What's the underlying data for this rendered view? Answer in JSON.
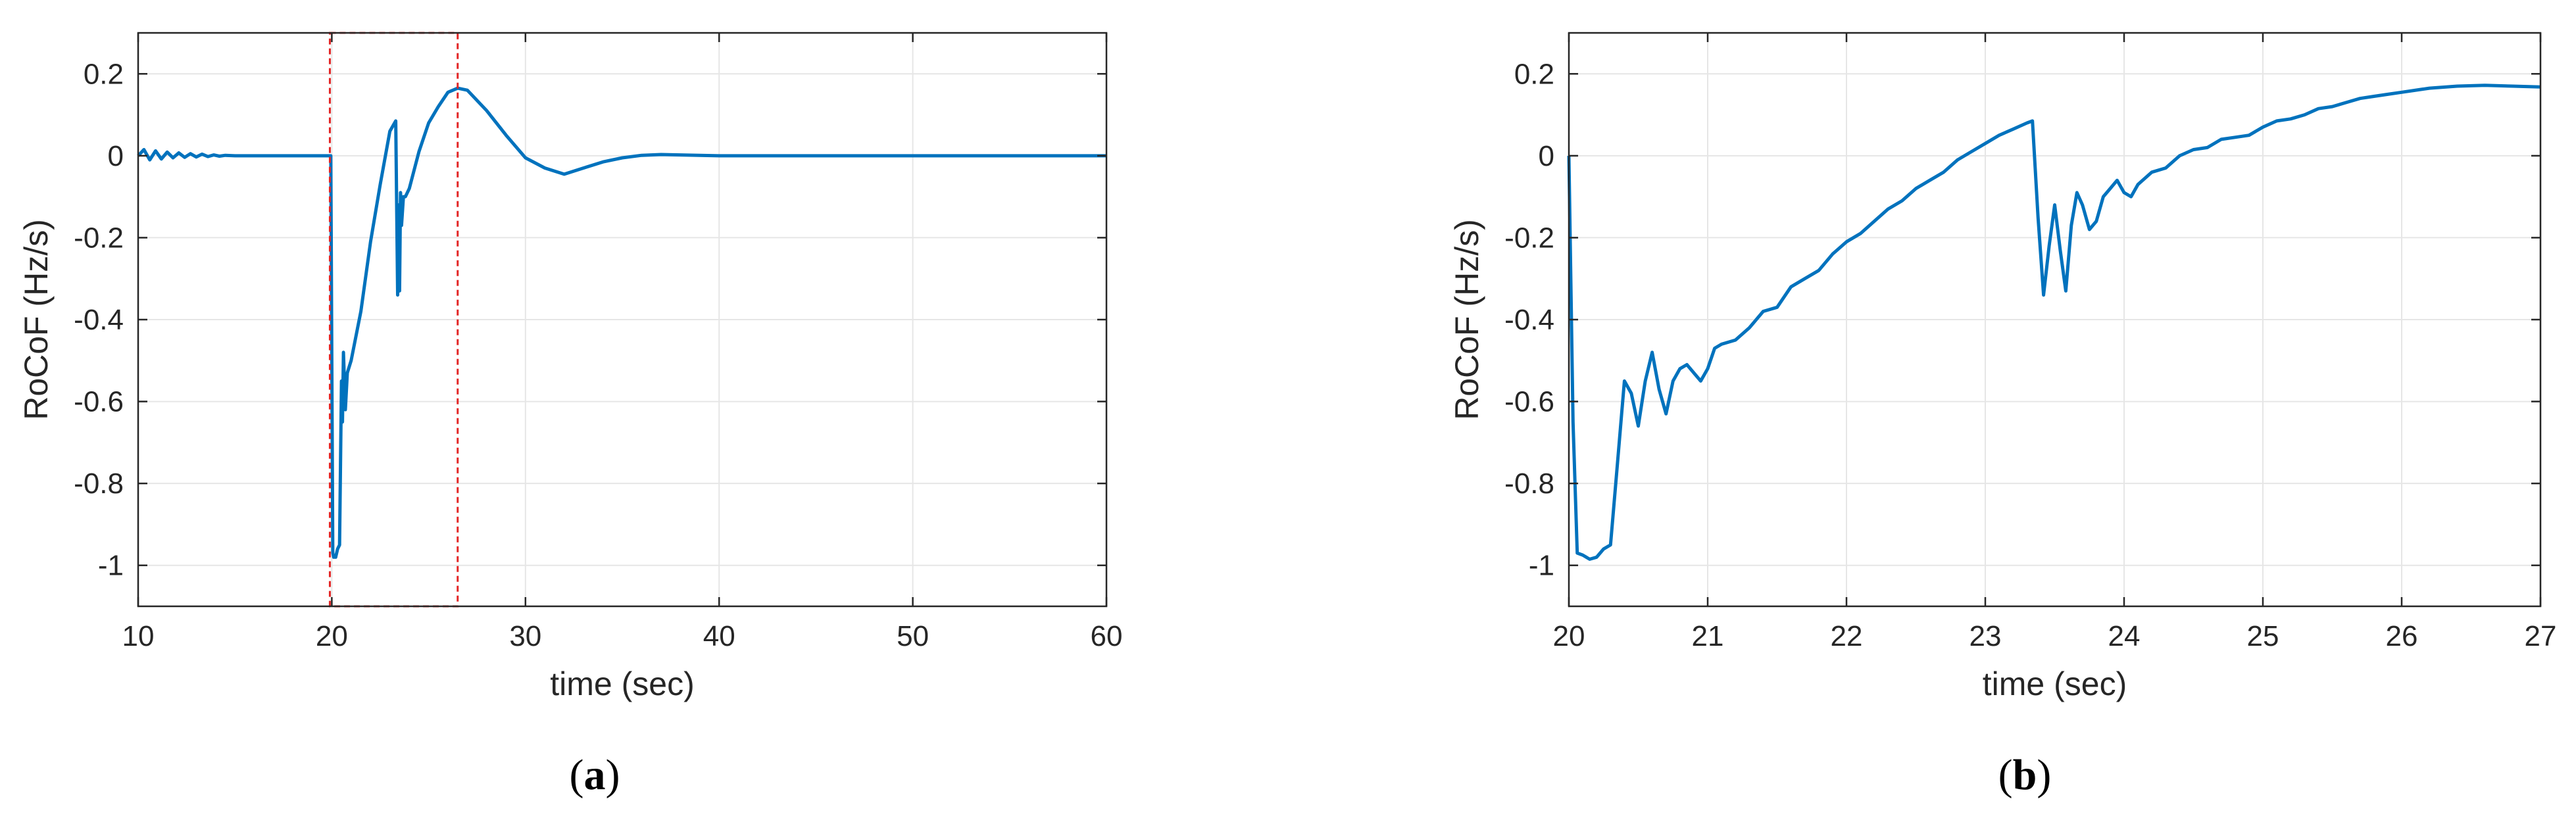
{
  "chart_data": [
    {
      "panel": "a",
      "type": "line",
      "caption_letter": "a",
      "xlabel": "time (sec)",
      "ylabel": "RoCoF (Hz/s)",
      "xlim": [
        10,
        60
      ],
      "ylim": [
        -1.1,
        0.3
      ],
      "xticks": [
        10,
        20,
        30,
        40,
        50,
        60
      ],
      "yticks": [
        0.2,
        0,
        -0.2,
        -0.4,
        -0.6,
        -0.8,
        -1
      ],
      "xtick_labels": [
        "10",
        "20",
        "30",
        "40",
        "50",
        "60"
      ],
      "ytick_labels": [
        "0.2",
        "0",
        "-0.2",
        "-0.4",
        "-0.6",
        "-0.8",
        "-1"
      ],
      "grid": true,
      "line_color": "#0072BD",
      "zoom_box": {
        "x": [
          19.9,
          26.5
        ],
        "y": [
          -1.1,
          0.3
        ],
        "color": "#E32626",
        "style": "dashed"
      },
      "x": [
        10,
        10.3,
        10.6,
        10.9,
        11.2,
        11.5,
        11.8,
        12.1,
        12.4,
        12.7,
        13,
        13.3,
        13.6,
        13.9,
        14.2,
        14.5,
        15,
        16,
        17,
        18,
        19,
        19.95,
        20.0,
        20.05,
        20.1,
        20.2,
        20.3,
        20.4,
        20.5,
        20.55,
        20.6,
        20.7,
        20.8,
        21.0,
        21.5,
        22.0,
        22.5,
        23.0,
        23.3,
        23.4,
        23.45,
        23.5,
        23.55,
        23.6,
        23.7,
        23.8,
        24.0,
        24.5,
        25.0,
        25.5,
        26.0,
        26.5,
        27.0,
        28.0,
        29.0,
        30.0,
        31.0,
        32.0,
        33.0,
        34.0,
        35.0,
        36.0,
        37.0,
        38.0,
        40.0,
        45.0,
        50.0,
        55.0,
        60.0
      ],
      "y": [
        0,
        0.015,
        -0.01,
        0.012,
        -0.008,
        0.009,
        -0.005,
        0.007,
        -0.004,
        0.005,
        -0.003,
        0.004,
        -0.002,
        0.002,
        -0.001,
        0.001,
        0,
        0,
        0,
        0,
        0,
        0,
        -0.5,
        -0.97,
        -0.98,
        -0.98,
        -0.96,
        -0.95,
        -0.55,
        -0.65,
        -0.48,
        -0.62,
        -0.53,
        -0.5,
        -0.38,
        -0.21,
        -0.07,
        0.06,
        0.085,
        -0.34,
        -0.12,
        -0.33,
        -0.09,
        -0.17,
        -0.1,
        -0.1,
        -0.08,
        0.01,
        0.08,
        0.12,
        0.155,
        0.165,
        0.16,
        0.11,
        0.05,
        -0.005,
        -0.03,
        -0.045,
        -0.03,
        -0.015,
        -0.005,
        0.001,
        0.003,
        0.002,
        0,
        0,
        0,
        0,
        0
      ]
    },
    {
      "panel": "b",
      "type": "line",
      "caption_letter": "b",
      "xlabel": "time (sec)",
      "ylabel": "RoCoF (Hz/s)",
      "xlim": [
        20,
        27
      ],
      "ylim": [
        -1.1,
        0.3
      ],
      "xticks": [
        20,
        21,
        22,
        23,
        24,
        25,
        26,
        27
      ],
      "yticks": [
        0.2,
        0,
        -0.2,
        -0.4,
        -0.6,
        -0.8,
        -1
      ],
      "xtick_labels": [
        "20",
        "21",
        "22",
        "23",
        "24",
        "25",
        "26",
        "27"
      ],
      "ytick_labels": [
        "0.2",
        "0",
        "-0.2",
        "-0.4",
        "-0.6",
        "-0.8",
        "-1"
      ],
      "grid": true,
      "line_color": "#0072BD",
      "x": [
        20.0,
        20.03,
        20.06,
        20.1,
        20.15,
        20.2,
        20.25,
        20.3,
        20.35,
        20.4,
        20.45,
        20.5,
        20.55,
        20.6,
        20.65,
        20.7,
        20.75,
        20.8,
        20.85,
        20.9,
        20.95,
        21.0,
        21.05,
        21.1,
        21.2,
        21.3,
        21.4,
        21.5,
        21.6,
        21.7,
        21.8,
        21.9,
        22.0,
        22.1,
        22.2,
        22.3,
        22.4,
        22.5,
        22.6,
        22.7,
        22.8,
        22.9,
        23.0,
        23.1,
        23.2,
        23.3,
        23.34,
        23.38,
        23.42,
        23.46,
        23.5,
        23.54,
        23.58,
        23.62,
        23.66,
        23.7,
        23.75,
        23.8,
        23.85,
        23.9,
        23.95,
        24.0,
        24.05,
        24.1,
        24.2,
        24.3,
        24.4,
        24.5,
        24.6,
        24.7,
        24.8,
        24.9,
        25.0,
        25.1,
        25.2,
        25.3,
        25.4,
        25.5,
        25.6,
        25.7,
        25.8,
        25.9,
        26.0,
        26.2,
        26.4,
        26.6,
        26.8,
        27.0
      ],
      "y": [
        0.0,
        -0.65,
        -0.97,
        -0.975,
        -0.985,
        -0.98,
        -0.96,
        -0.95,
        -0.75,
        -0.55,
        -0.58,
        -0.66,
        -0.55,
        -0.48,
        -0.57,
        -0.63,
        -0.55,
        -0.52,
        -0.51,
        -0.53,
        -0.55,
        -0.52,
        -0.47,
        -0.46,
        -0.45,
        -0.42,
        -0.38,
        -0.37,
        -0.32,
        -0.3,
        -0.28,
        -0.24,
        -0.21,
        -0.19,
        -0.16,
        -0.13,
        -0.11,
        -0.08,
        -0.06,
        -0.04,
        -0.01,
        0.01,
        0.03,
        0.05,
        0.065,
        0.08,
        0.085,
        -0.15,
        -0.34,
        -0.22,
        -0.12,
        -0.23,
        -0.33,
        -0.17,
        -0.09,
        -0.12,
        -0.18,
        -0.16,
        -0.1,
        -0.08,
        -0.06,
        -0.09,
        -0.1,
        -0.07,
        -0.04,
        -0.03,
        0.0,
        0.015,
        0.02,
        0.04,
        0.045,
        0.05,
        0.07,
        0.085,
        0.09,
        0.1,
        0.115,
        0.12,
        0.13,
        0.14,
        0.145,
        0.15,
        0.155,
        0.165,
        0.17,
        0.172,
        0.17,
        0.168
      ]
    }
  ]
}
